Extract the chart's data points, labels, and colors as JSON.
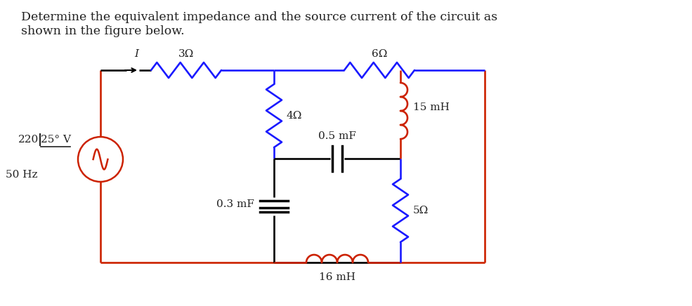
{
  "title_line1": "Determine the equivalent impedance and the source current of the circuit as",
  "title_line2": "shown in the figure below.",
  "title_fontsize": 12.5,
  "bg_color": "#ffffff",
  "wire_color_red": "#cc2200",
  "wire_color_blue": "#1a1aff",
  "wire_color_black": "#000000",
  "text_color": "#222222",
  "label_3ohm": "3Ω",
  "label_6ohm": "6Ω",
  "label_4ohm": "4Ω",
  "label_5ohm": "5Ω",
  "label_03mF": "0.3 mF",
  "label_05mF": "0.5 mF",
  "label_16mH": "16 mH",
  "label_15mH": "15 mH",
  "label_source_voltage": "220",
  "label_source_angle": "25° V",
  "label_source_underline": true,
  "label_freq": "50 Hz",
  "label_current": "I"
}
